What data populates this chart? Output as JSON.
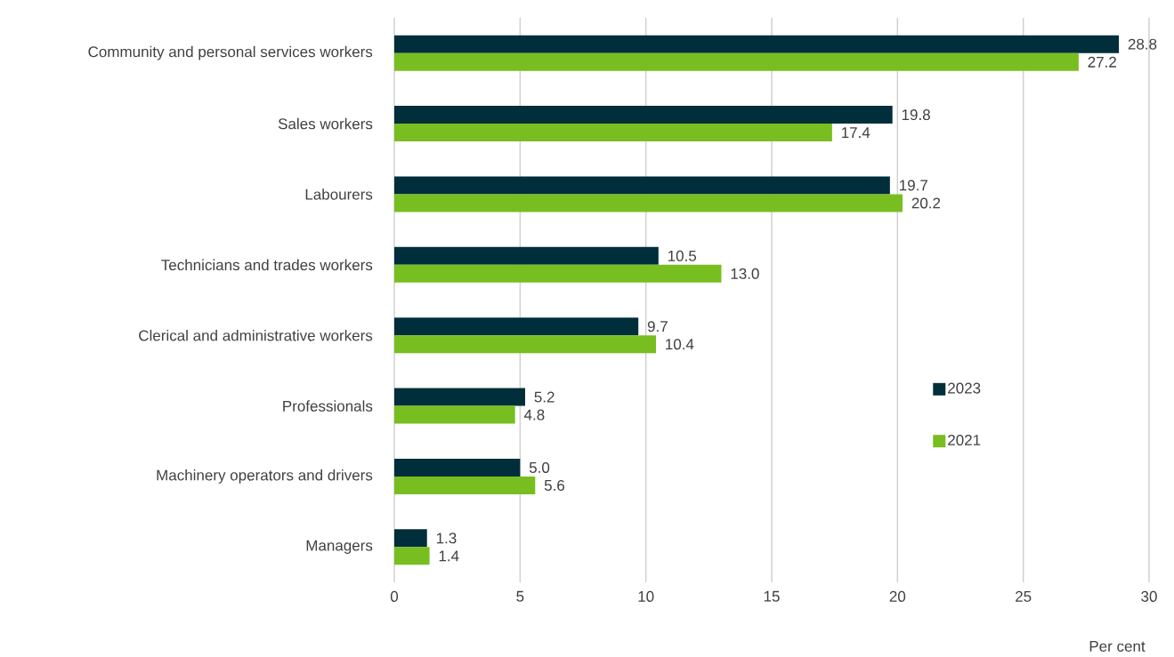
{
  "chart_data": {
    "type": "bar",
    "orientation": "horizontal",
    "xlabel": "Per cent",
    "categories": [
      "Community and personal services workers",
      "Sales workers",
      "Labourers",
      "Technicians and trades workers",
      "Clerical and administrative workers",
      "Professionals",
      "Machinery operators and drivers",
      "Managers"
    ],
    "series": [
      {
        "name": "2023",
        "color": "#002e3a",
        "values": [
          28.8,
          19.8,
          19.7,
          10.5,
          9.7,
          5.2,
          5.0,
          1.3
        ],
        "value_labels": [
          "28.8",
          "19.8",
          "19.7",
          "10.5",
          "9.7",
          "5.2",
          "5.0",
          "1.3"
        ]
      },
      {
        "name": "2021",
        "color": "#78be20",
        "values": [
          27.2,
          17.4,
          20.2,
          13.0,
          10.4,
          4.8,
          5.6,
          1.4
        ],
        "value_labels": [
          "27.2",
          "17.4",
          "20.2",
          "13.0",
          "10.4",
          "4.8",
          "5.6",
          "1.4"
        ]
      }
    ],
    "xlim": [
      0,
      30
    ],
    "xticks": [
      0,
      5,
      10,
      15,
      20,
      25,
      30
    ],
    "grid": "x",
    "legend": "right"
  }
}
